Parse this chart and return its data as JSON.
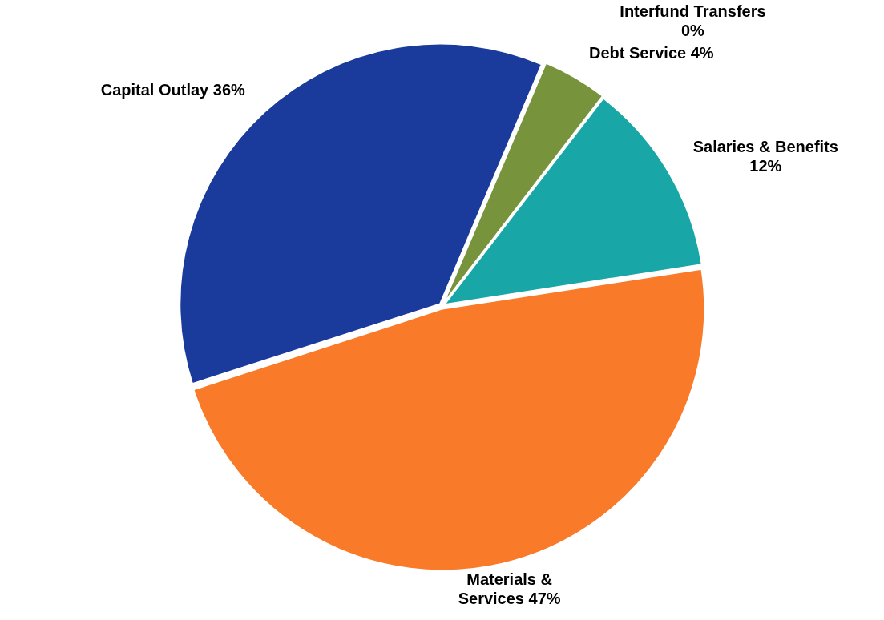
{
  "chart_data": {
    "type": "pie",
    "categories": [
      "Debt Service",
      "Interfund Transfers",
      "Salaries & Benefits",
      "Materials & Services",
      "Capital Outlay"
    ],
    "values": [
      4,
      0,
      12,
      47,
      36
    ],
    "value_labels": [
      "4%",
      "0%",
      "12%",
      "47%",
      "36%"
    ],
    "colors": [
      "#77933c",
      "#f2d98c",
      "#18a6a6",
      "#f97a28",
      "#1a3a9c"
    ],
    "legend": false
  }
}
